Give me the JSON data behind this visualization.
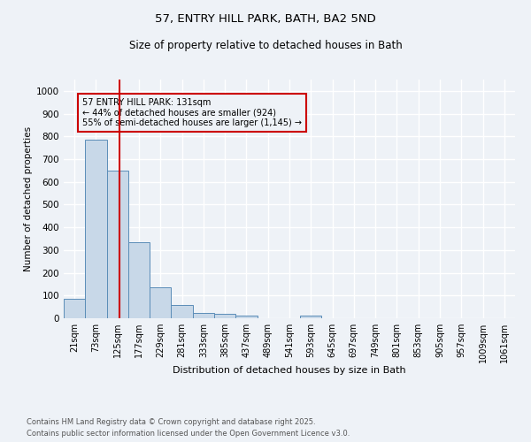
{
  "title1": "57, ENTRY HILL PARK, BATH, BA2 5ND",
  "title2": "Size of property relative to detached houses in Bath",
  "xlabel": "Distribution of detached houses by size in Bath",
  "ylabel": "Number of detached properties",
  "bar_color": "#c8d8e8",
  "bar_edge_color": "#5b8db8",
  "annotation_box_color": "#cc0000",
  "vline_color": "#cc0000",
  "categories": [
    "21sqm",
    "73sqm",
    "125sqm",
    "177sqm",
    "229sqm",
    "281sqm",
    "333sqm",
    "385sqm",
    "437sqm",
    "489sqm",
    "541sqm",
    "593sqm",
    "645sqm",
    "697sqm",
    "749sqm",
    "801sqm",
    "853sqm",
    "905sqm",
    "957sqm",
    "1009sqm",
    "1061sqm"
  ],
  "values": [
    85,
    785,
    648,
    335,
    135,
    60,
    22,
    18,
    10,
    0,
    0,
    12,
    0,
    0,
    0,
    0,
    0,
    0,
    0,
    0,
    0
  ],
  "ylim": [
    0,
    1050
  ],
  "yticks": [
    0,
    100,
    200,
    300,
    400,
    500,
    600,
    700,
    800,
    900,
    1000
  ],
  "vline_x": 2.1,
  "annotation_text": "57 ENTRY HILL PARK: 131sqm\n← 44% of detached houses are smaller (924)\n55% of semi-detached houses are larger (1,145) →",
  "footnote1": "Contains HM Land Registry data © Crown copyright and database right 2025.",
  "footnote2": "Contains public sector information licensed under the Open Government Licence v3.0.",
  "background_color": "#eef2f7",
  "grid_color": "#ffffff"
}
